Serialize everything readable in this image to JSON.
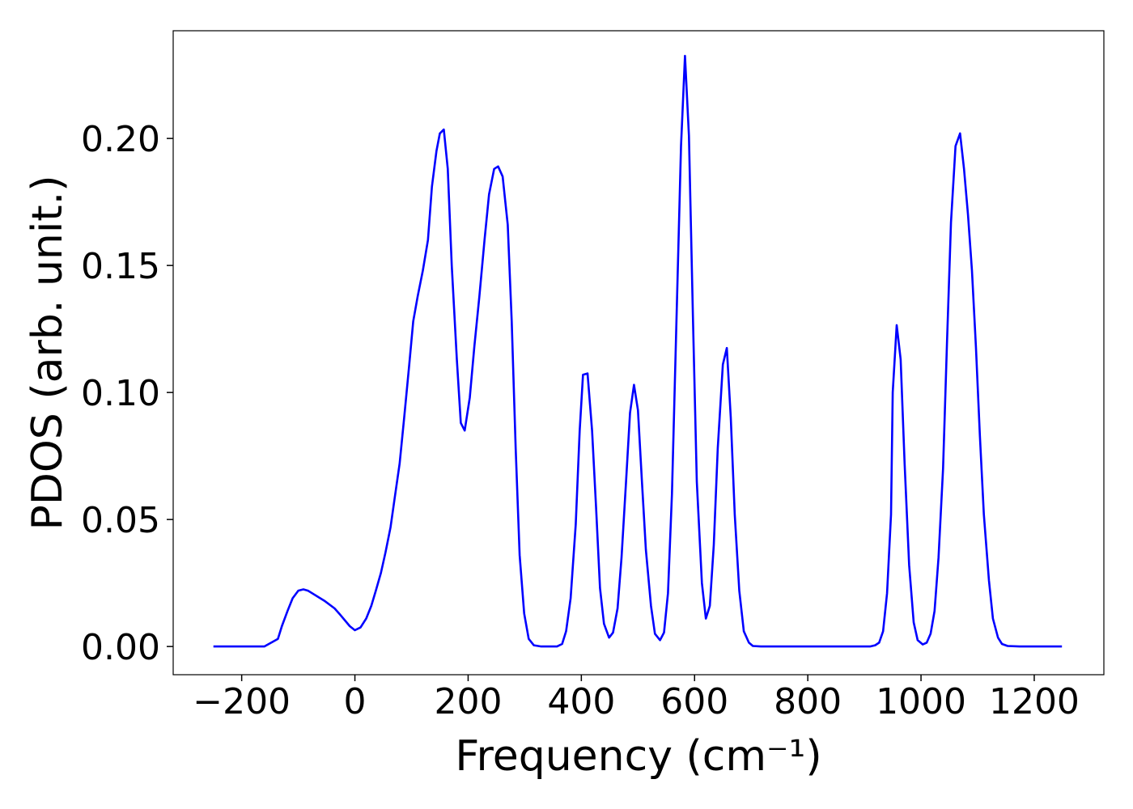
{
  "chart_data": {
    "type": "line",
    "xlabel": "Frequency (cm⁻¹)",
    "ylabel": "PDOS (arb. unit.)",
    "xlim": [
      -321,
      1323
    ],
    "ylim": [
      -0.0111,
      0.2424
    ],
    "xticks": [
      {
        "value": -200,
        "label": "−200"
      },
      0,
      200,
      400,
      600,
      800,
      1000,
      1200
    ],
    "yticks": [
      {
        "value": 0,
        "label": "0.00"
      },
      {
        "value": 0.05,
        "label": "0.05"
      },
      {
        "value": 0.1,
        "label": "0.10"
      },
      {
        "value": 0.15,
        "label": "0.15"
      },
      {
        "value": 0.2,
        "label": "0.20"
      }
    ],
    "grid": false,
    "series": [
      {
        "color": "#0000ff",
        "x": [
          -250,
          -160,
          -136,
          -129,
          -119,
          -110,
          -100,
          -91,
          -83,
          -54,
          -36,
          -26,
          -9,
          0,
          10,
          20,
          29,
          37,
          46,
          54,
          63,
          70,
          79,
          87,
          96,
          103,
          111,
          120,
          129,
          136,
          144,
          150,
          157,
          164,
          171,
          180,
          187,
          194,
          203,
          211,
          220,
          229,
          237,
          246,
          253,
          261,
          270,
          277,
          284,
          291,
          299,
          307,
          316,
          329,
          357,
          366,
          373,
          381,
          390,
          397,
          403,
          411,
          419,
          426,
          433,
          440,
          449,
          456,
          464,
          471,
          479,
          486,
          493,
          500,
          507,
          514,
          523,
          530,
          539,
          546,
          553,
          560,
          567,
          576,
          583,
          590,
          597,
          604,
          613,
          620,
          627,
          634,
          641,
          650,
          657,
          664,
          671,
          679,
          687,
          696,
          703,
          717,
          910,
          919,
          926,
          933,
          940,
          947,
          950,
          957,
          964,
          971,
          979,
          987,
          994,
          1003,
          1010,
          1017,
          1024,
          1031,
          1039,
          1046,
          1053,
          1061,
          1069,
          1076,
          1083,
          1090,
          1097,
          1104,
          1111,
          1120,
          1127,
          1136,
          1143,
          1153,
          1174,
          1249
        ],
        "values": [
          0,
          0,
          0.003,
          0.008,
          0.014,
          0.019,
          0.022,
          0.0225,
          0.022,
          0.018,
          0.015,
          0.0125,
          0.008,
          0.0064,
          0.0075,
          0.011,
          0.016,
          0.022,
          0.029,
          0.037,
          0.047,
          0.058,
          0.072,
          0.09,
          0.111,
          0.128,
          0.138,
          0.148,
          0.16,
          0.181,
          0.195,
          0.202,
          0.2035,
          0.188,
          0.15,
          0.113,
          0.088,
          0.085,
          0.098,
          0.118,
          0.138,
          0.16,
          0.178,
          0.188,
          0.189,
          0.185,
          0.166,
          0.128,
          0.078,
          0.036,
          0.013,
          0.003,
          0.0005,
          0,
          0,
          0.001,
          0.006,
          0.019,
          0.048,
          0.085,
          0.107,
          0.1075,
          0.085,
          0.055,
          0.023,
          0.009,
          0.0035,
          0.0055,
          0.015,
          0.035,
          0.065,
          0.092,
          0.103,
          0.093,
          0.065,
          0.038,
          0.016,
          0.005,
          0.0025,
          0.0055,
          0.021,
          0.06,
          0.12,
          0.197,
          0.2325,
          0.201,
          0.13,
          0.065,
          0.025,
          0.011,
          0.016,
          0.04,
          0.078,
          0.111,
          0.1175,
          0.09,
          0.052,
          0.022,
          0.006,
          0.0015,
          0.0002,
          0,
          0,
          0.0005,
          0.0015,
          0.006,
          0.021,
          0.052,
          0.1,
          0.1265,
          0.113,
          0.072,
          0.032,
          0.0095,
          0.0025,
          0.0008,
          0.0015,
          0.005,
          0.014,
          0.035,
          0.07,
          0.12,
          0.167,
          0.197,
          0.202,
          0.188,
          0.17,
          0.148,
          0.118,
          0.083,
          0.052,
          0.026,
          0.011,
          0.0035,
          0.001,
          0.0002,
          0,
          0
        ]
      }
    ]
  }
}
